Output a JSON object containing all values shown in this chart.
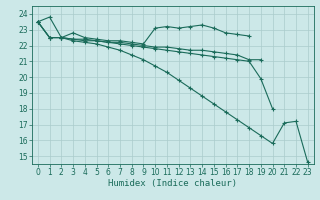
{
  "xlabel": "Humidex (Indice chaleur)",
  "background_color": "#cce8e8",
  "grid_color": "#aacccc",
  "line_color": "#1a6b5a",
  "x_values": [
    0,
    1,
    2,
    3,
    4,
    5,
    6,
    7,
    8,
    9,
    10,
    11,
    12,
    13,
    14,
    15,
    16,
    17,
    18,
    19,
    20,
    21,
    22,
    23
  ],
  "series1": [
    23.5,
    23.8,
    22.5,
    22.8,
    22.5,
    22.4,
    22.3,
    22.3,
    22.2,
    22.1,
    23.1,
    23.2,
    23.1,
    23.2,
    23.3,
    23.1,
    22.8,
    22.7,
    22.6,
    null,
    null,
    null,
    null,
    null
  ],
  "series2": [
    23.5,
    22.5,
    22.5,
    22.4,
    22.3,
    22.3,
    22.2,
    22.2,
    22.1,
    22.0,
    21.9,
    21.9,
    21.8,
    21.7,
    21.7,
    21.6,
    21.5,
    21.4,
    21.1,
    21.1,
    null,
    null,
    null,
    null
  ],
  "series3": [
    23.5,
    22.5,
    22.5,
    22.4,
    22.4,
    22.3,
    22.2,
    22.1,
    22.0,
    21.9,
    21.8,
    21.7,
    21.6,
    21.5,
    21.4,
    21.3,
    21.2,
    21.1,
    21.0,
    19.9,
    18.0,
    null,
    null,
    null
  ],
  "series4": [
    23.5,
    22.5,
    22.5,
    22.3,
    22.2,
    22.1,
    21.9,
    21.7,
    21.4,
    21.1,
    20.7,
    20.3,
    19.8,
    19.3,
    18.8,
    18.3,
    17.8,
    17.3,
    16.8,
    16.3,
    15.8,
    17.1,
    17.2,
    14.6
  ],
  "ylim": [
    14.5,
    24.5
  ],
  "xlim": [
    -0.5,
    23.5
  ],
  "yticks": [
    15,
    16,
    17,
    18,
    19,
    20,
    21,
    22,
    23,
    24
  ],
  "xticks": [
    0,
    1,
    2,
    3,
    4,
    5,
    6,
    7,
    8,
    9,
    10,
    11,
    12,
    13,
    14,
    15,
    16,
    17,
    18,
    19,
    20,
    21,
    22,
    23
  ],
  "xlabel_fontsize": 6.5,
  "tick_fontsize": 5.5
}
